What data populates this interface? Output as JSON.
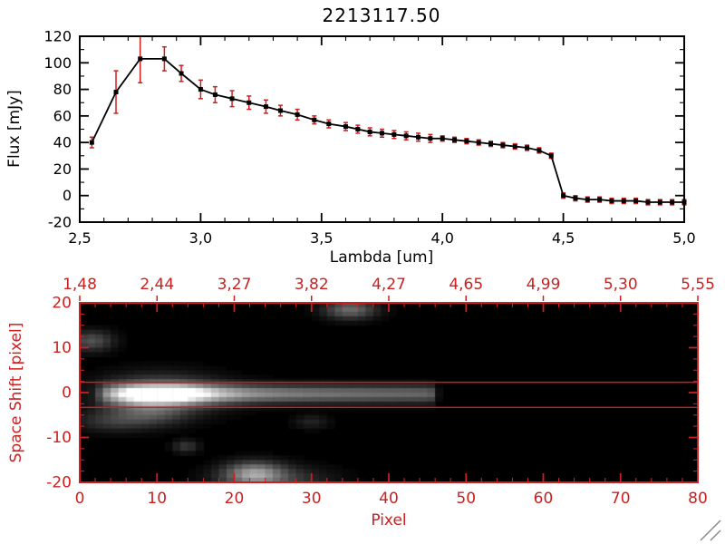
{
  "colors": {
    "foreground": "#000000",
    "accent_red": "#cc2020",
    "background": "#ffffff",
    "image_background": "#000000"
  },
  "icons": {
    "resize_grip": "two-diagonal-lines"
  },
  "chart_data": [
    {
      "type": "line",
      "title": "2213117.50",
      "xlabel": "Lambda [um]",
      "ylabel": "Flux [mJy]",
      "xlim": [
        2.5,
        5.0
      ],
      "ylim": [
        -20,
        120
      ],
      "xtick_values": [
        2.5,
        3.0,
        3.5,
        4.0,
        4.5,
        5.0
      ],
      "xtick_labels": [
        "2,5",
        "3,0",
        "3,5",
        "4,0",
        "4,5",
        "5,0"
      ],
      "x_minor_step": 0.1,
      "ytick_values": [
        -20,
        0,
        20,
        40,
        60,
        80,
        100,
        120
      ],
      "ytick_labels": [
        "-20",
        "0",
        "20",
        "40",
        "60",
        "80",
        "100",
        "120"
      ],
      "y_minor_step": 10,
      "marker": "square",
      "line_color": "#000000",
      "error_color": "#cc2020",
      "x": [
        2.55,
        2.65,
        2.75,
        2.85,
        2.92,
        3.0,
        3.06,
        3.13,
        3.2,
        3.27,
        3.33,
        3.4,
        3.47,
        3.53,
        3.6,
        3.65,
        3.7,
        3.75,
        3.8,
        3.85,
        3.9,
        3.95,
        4.0,
        4.05,
        4.1,
        4.15,
        4.2,
        4.25,
        4.3,
        4.35,
        4.4,
        4.45,
        4.5,
        4.55,
        4.6,
        4.65,
        4.7,
        4.75,
        4.8,
        4.85,
        4.9,
        4.95,
        5.0
      ],
      "y": [
        40,
        78,
        103,
        103,
        92,
        80,
        76,
        73,
        70,
        67,
        64,
        61,
        57,
        54,
        52,
        50,
        48,
        47,
        46,
        45,
        44,
        43,
        43,
        42,
        41,
        40,
        39,
        38,
        37,
        36,
        34,
        30,
        0,
        -2,
        -3,
        -3,
        -4,
        -4,
        -4,
        -5,
        -5,
        -5,
        -5
      ],
      "yerr": [
        4,
        16,
        18,
        9,
        6,
        7,
        6,
        6,
        5,
        5,
        4,
        4,
        3,
        3,
        3,
        3,
        3,
        3,
        3,
        3,
        3,
        3,
        2,
        2,
        2,
        2,
        2,
        2,
        2,
        2,
        2,
        2,
        2,
        2,
        2,
        2,
        2,
        2,
        2,
        2,
        2,
        2,
        2
      ]
    },
    {
      "type": "heatmap",
      "xlabel": "Pixel",
      "ylabel": "Space Shift [pixel]",
      "xlim": [
        0,
        80
      ],
      "ylim": [
        -20,
        20
      ],
      "xtick_values": [
        0,
        10,
        20,
        30,
        40,
        50,
        60,
        70,
        80
      ],
      "xtick_labels": [
        "0",
        "10",
        "20",
        "30",
        "40",
        "50",
        "60",
        "70",
        "80"
      ],
      "x_minor_step": 2,
      "ytick_values": [
        -20,
        -10,
        0,
        10,
        20
      ],
      "ytick_labels": [
        "-20",
        "-10",
        "0",
        "10",
        "20"
      ],
      "y_minor_step": 2.5,
      "top_axis_labels": [
        "1,48",
        "2,44",
        "3,27",
        "3,82",
        "4,27",
        "4,65",
        "4,99",
        "5,30",
        "5,55"
      ],
      "axis_color": "#cc2020",
      "background": "#000000",
      "aperture_lines_y": [
        2.3,
        -3.3
      ],
      "trace": {
        "y_center": -0.3,
        "sigma": 1.4,
        "profile": [
          [
            2,
            0
          ],
          [
            3,
            0.35
          ],
          [
            5,
            0.65
          ],
          [
            7,
            0.9
          ],
          [
            9,
            1.0
          ],
          [
            13,
            1.0
          ],
          [
            15,
            0.85
          ],
          [
            18,
            0.65
          ],
          [
            22,
            0.55
          ],
          [
            26,
            0.5
          ],
          [
            31,
            0.46
          ],
          [
            36,
            0.43
          ],
          [
            41,
            0.41
          ],
          [
            45,
            0.4
          ],
          [
            46,
            0.32
          ],
          [
            46.6,
            0
          ]
        ]
      },
      "blobs": [
        {
          "x": 10.5,
          "y": -0.3,
          "sx": 5.5,
          "sy": 3.0,
          "a": 0.38
        },
        {
          "x": 9.0,
          "y": -4.5,
          "sx": 3.5,
          "sy": 2.0,
          "a": 0.25
        },
        {
          "x": 22.5,
          "y": -18.0,
          "sx": 2.6,
          "sy": 1.8,
          "a": 0.5
        },
        {
          "x": 25.0,
          "y": -19.5,
          "sx": 5.0,
          "sy": 2.2,
          "a": 0.25
        },
        {
          "x": 35.0,
          "y": 18.5,
          "sx": 2.4,
          "sy": 1.5,
          "a": 0.42
        },
        {
          "x": 1.5,
          "y": 11.5,
          "sx": 2.0,
          "sy": 1.6,
          "a": 0.32
        },
        {
          "x": 4.0,
          "y": -6.5,
          "sx": 3.5,
          "sy": 1.6,
          "a": 0.18
        },
        {
          "x": 13.7,
          "y": -12.0,
          "sx": 1.2,
          "sy": 1.0,
          "a": 0.22
        },
        {
          "x": 30.0,
          "y": -6.5,
          "sx": 1.6,
          "sy": 1.1,
          "a": 0.14
        }
      ]
    }
  ]
}
